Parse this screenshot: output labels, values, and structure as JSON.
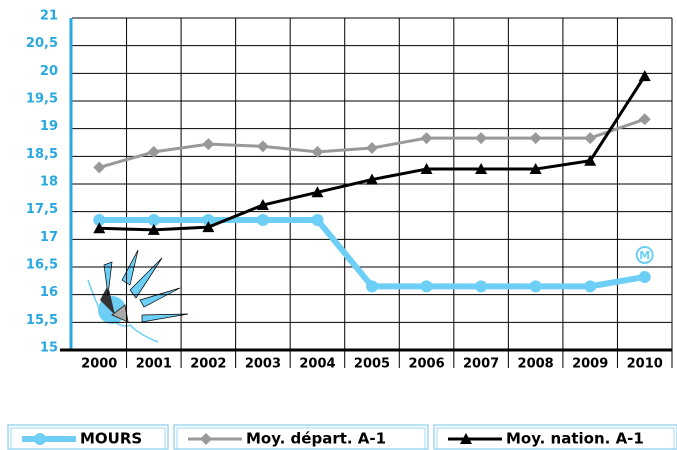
{
  "chart_data": {
    "type": "line",
    "categories": [
      "2000",
      "2001",
      "2002",
      "2003",
      "2004",
      "2005",
      "2006",
      "2007",
      "2008",
      "2009",
      "2010"
    ],
    "series": [
      {
        "name": "MOURS",
        "color": "#6dcff6",
        "marker": "circle",
        "values": [
          17.35,
          17.35,
          17.35,
          17.35,
          17.35,
          16.15,
          16.15,
          16.15,
          16.15,
          16.15,
          16.32
        ]
      },
      {
        "name": "Moy. départ. A-1",
        "color": "#999999",
        "marker": "diamond",
        "values": [
          18.3,
          18.58,
          18.72,
          18.68,
          18.58,
          18.65,
          18.83,
          18.83,
          18.83,
          18.83,
          19.17
        ]
      },
      {
        "name": "Moy. nation. A-1",
        "color": "#000000",
        "marker": "triangle",
        "values": [
          17.2,
          17.17,
          17.22,
          17.62,
          17.85,
          18.08,
          18.27,
          18.27,
          18.27,
          18.42,
          19.95
        ]
      }
    ],
    "annotation": "M",
    "ylim": [
      15,
      21
    ],
    "yticks": [
      15,
      {
        "value": 15.5,
        "label": "15,5"
      },
      16,
      {
        "value": 16.5,
        "label": "16,5"
      },
      17,
      {
        "value": 17.5,
        "label": "17,5"
      },
      18,
      {
        "value": 18.5,
        "label": "18,5"
      },
      19,
      {
        "value": 19.5,
        "label": "19,5"
      },
      20,
      {
        "value": 20.5,
        "label": "20,5"
      },
      21
    ],
    "grid": true,
    "legend": "bottom"
  }
}
